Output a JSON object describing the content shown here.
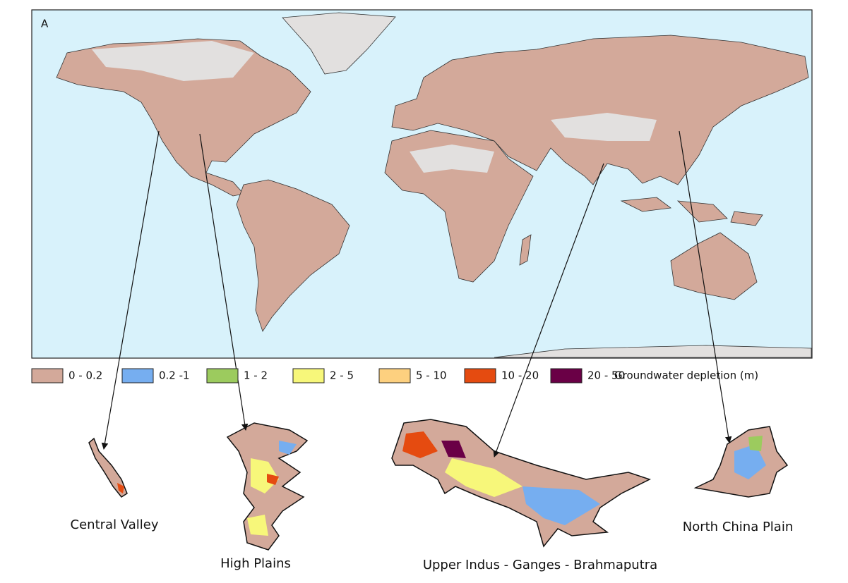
{
  "panel_label": "A",
  "legend": {
    "title": "Groundwater depletion (m)",
    "items": [
      {
        "label": "0 - 0.2",
        "color": "#d3a99a"
      },
      {
        "label": "0.2 -1",
        "color": "#76aef0"
      },
      {
        "label": "1 - 2",
        "color": "#9ccb5e"
      },
      {
        "label": "2 - 5",
        "color": "#f7f77a"
      },
      {
        "label": "5 - 10",
        "color": "#fdd07f"
      },
      {
        "label": "10 - 20",
        "color": "#e54b10"
      },
      {
        "label": "20 - 50",
        "color": "#6a0046"
      }
    ]
  },
  "regions": [
    {
      "label": "Central Valley"
    },
    {
      "label": "High Plains"
    },
    {
      "label": "Upper Indus - Ganges - Brahmaputra"
    },
    {
      "label": "North China Plain"
    }
  ]
}
